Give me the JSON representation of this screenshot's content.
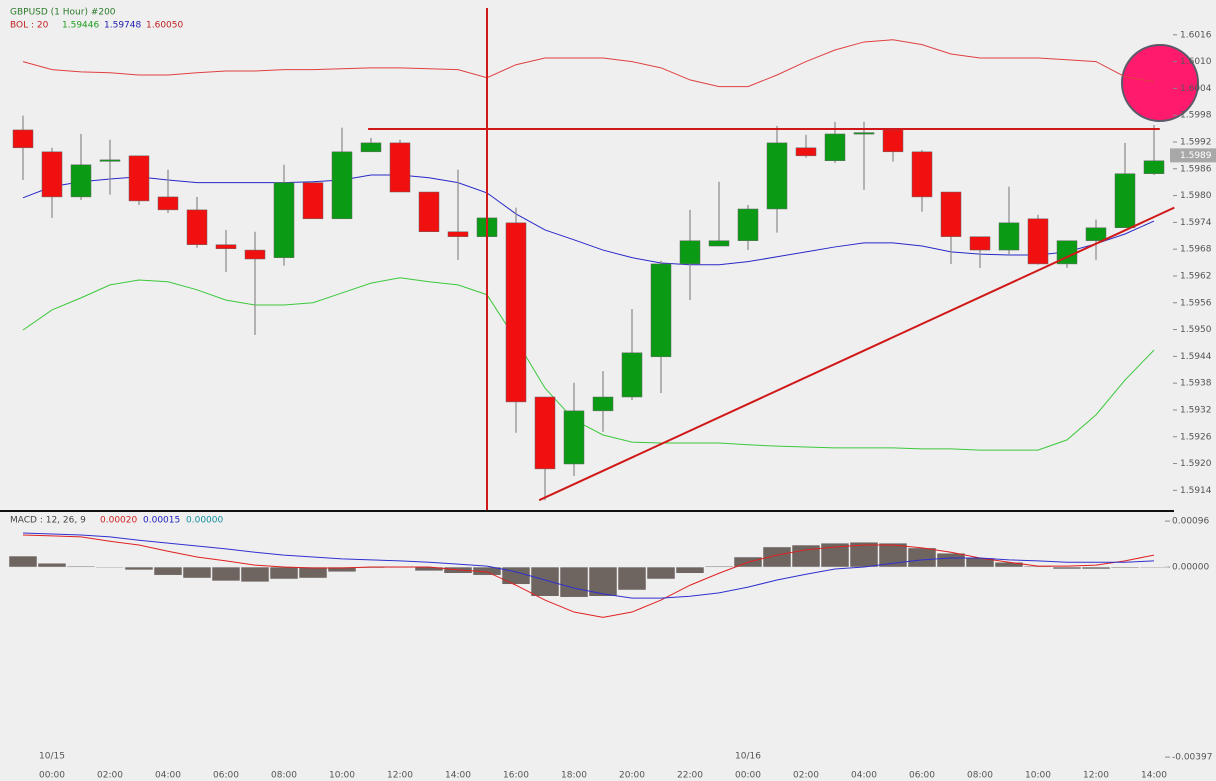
{
  "header": {
    "title": "GBPUSD (1 Hour) #200",
    "bol_label": "BOL : 20",
    "bol_values": [
      "1.59446",
      "1.59748",
      "1.60050"
    ],
    "macd_label": "MACD : 12, 26, 9",
    "macd_values": [
      "0.00020",
      "0.00015",
      "0.00000"
    ]
  },
  "chart_data": [
    {
      "type": "candlestick",
      "categories": [
        null,
        "00:00",
        null,
        "02:00",
        null,
        "04:00",
        null,
        "06:00",
        null,
        "08:00",
        null,
        "10:00",
        null,
        "12:00",
        null,
        "14:00",
        null,
        "16:00",
        null,
        "18:00",
        null,
        "20:00",
        null,
        "22:00",
        null,
        "00:00",
        null,
        "02:00",
        null,
        "04:00",
        null,
        "06:00",
        null,
        "08:00",
        null,
        "10:00",
        null,
        "12:00",
        null,
        "14:00"
      ],
      "date_labels": [
        {
          "index": 1,
          "label": "10/15"
        },
        {
          "index": 25,
          "label": "10/16"
        }
      ],
      "open": [
        1.59947,
        1.59898,
        1.59797,
        1.5988,
        1.59889,
        1.59797,
        1.59768,
        1.5969,
        1.59678,
        1.59661,
        1.59829,
        1.59748,
        1.59898,
        1.59918,
        1.59808,
        1.59719,
        1.59708,
        1.59739,
        1.59349,
        1.59199,
        1.59318,
        1.59349,
        1.59439,
        1.59647,
        1.59687,
        1.59699,
        1.5977,
        1.59907,
        1.59878,
        1.59941,
        1.59947,
        1.59898,
        1.59808,
        1.59708,
        1.59678,
        1.59748,
        1.59647,
        1.59699,
        1.59728,
        1.59849
      ],
      "high": [
        1.59979,
        1.59907,
        1.59938,
        1.59925,
        1.59889,
        1.59858,
        1.59797,
        1.59723,
        1.59719,
        1.59869,
        1.59829,
        1.59952,
        1.59929,
        1.59925,
        1.59808,
        1.59858,
        1.59835,
        1.59773,
        1.59349,
        1.59381,
        1.59407,
        1.59546,
        1.59654,
        1.59768,
        1.59831,
        1.59779,
        1.59956,
        1.59936,
        1.59965,
        1.59965,
        1.59947,
        1.59902,
        1.59808,
        1.59708,
        1.5982,
        1.59757,
        1.59699,
        1.59746,
        1.59918,
        1.59958
      ],
      "low": [
        1.59835,
        1.5975,
        1.5979,
        1.59802,
        1.59779,
        1.59761,
        1.59683,
        1.59629,
        1.59488,
        1.59643,
        1.59748,
        1.59748,
        1.59898,
        1.59808,
        1.59719,
        1.59656,
        1.59701,
        1.59269,
        1.59118,
        1.59172,
        1.59271,
        1.59342,
        1.59358,
        1.59566,
        1.59687,
        1.59678,
        1.59717,
        1.59885,
        1.59873,
        1.59813,
        1.59876,
        1.59764,
        1.59647,
        1.59638,
        1.59667,
        1.59645,
        1.59638,
        1.59656,
        1.59728,
        1.59846
      ],
      "close": [
        1.59907,
        1.59797,
        1.59869,
        1.5988,
        1.59788,
        1.59768,
        1.5969,
        1.59681,
        1.59658,
        1.59829,
        1.59748,
        1.59898,
        1.59918,
        1.59808,
        1.59719,
        1.59708,
        1.5975,
        1.59338,
        1.59188,
        1.59318,
        1.59349,
        1.59448,
        1.59647,
        1.59699,
        1.59699,
        1.5977,
        1.59918,
        1.59889,
        1.59938,
        1.59941,
        1.59898,
        1.59797,
        1.59708,
        1.59678,
        1.59739,
        1.59647,
        1.59699,
        1.59728,
        1.59849,
        1.59878
      ],
      "up_color": "#0a9a14",
      "down_color": "#f01010",
      "series": [
        {
          "color": "#e04040",
          "values": [
            1.601,
            1.60082,
            1.60077,
            1.60075,
            1.6007,
            1.6007,
            1.60075,
            1.60079,
            1.60079,
            1.60082,
            1.60082,
            1.60084,
            1.60086,
            1.60086,
            1.60084,
            1.60082,
            1.60064,
            1.60093,
            1.60108,
            1.60108,
            1.60108,
            1.601,
            1.60086,
            1.60059,
            1.60044,
            1.60044,
            1.6007,
            1.601,
            1.60126,
            1.60144,
            1.60149,
            1.60138,
            1.60117,
            1.60108,
            1.60108,
            1.60108,
            1.60104,
            1.601,
            1.60066,
            1.60055
          ]
        },
        {
          "color": "#2828c8",
          "values": [
            1.59795,
            1.5982,
            1.59831,
            1.59837,
            1.59842,
            1.59835,
            1.59829,
            1.59829,
            1.59829,
            1.59829,
            1.59831,
            1.59835,
            1.59846,
            1.59846,
            1.5984,
            1.59829,
            1.59806,
            1.59759,
            1.59723,
            1.59701,
            1.59678,
            1.59661,
            1.59649,
            1.59645,
            1.59645,
            1.59652,
            1.59663,
            1.59674,
            1.59685,
            1.59694,
            1.59694,
            1.59687,
            1.59674,
            1.59669,
            1.59667,
            1.59667,
            1.59674,
            1.59692,
            1.59714,
            1.59743
          ]
        },
        {
          "color": "#3cc83c",
          "values": [
            1.59499,
            1.59544,
            1.59571,
            1.596,
            1.59611,
            1.59607,
            1.59589,
            1.59566,
            1.59555,
            1.59555,
            1.5956,
            1.59582,
            1.59604,
            1.59616,
            1.59607,
            1.596,
            1.59578,
            1.59477,
            1.59369,
            1.59298,
            1.59264,
            1.59248,
            1.59246,
            1.59246,
            1.59246,
            1.59242,
            1.59239,
            1.59237,
            1.59235,
            1.59235,
            1.59235,
            1.59233,
            1.59233,
            1.5923,
            1.5923,
            1.5923,
            1.59253,
            1.59309,
            1.59387,
            1.59454
          ]
        }
      ],
      "ylim": [
        1.59096,
        1.6022
      ],
      "yticks": [
        1.6016,
        {
          "value": 1.601,
          "label": "1.6010"
        },
        1.6004,
        1.5998,
        1.5992,
        1.5986,
        {
          "value": 1.598,
          "label": "1.5980"
        },
        1.5974,
        1.5968,
        1.5962,
        1.5956,
        {
          "value": 1.595,
          "label": "1.5950"
        },
        1.5944,
        1.5938,
        1.5932,
        1.5926,
        {
          "value": 1.592,
          "label": "1.5920"
        },
        1.5914
      ],
      "last_price": 1.5989,
      "drawings": [
        {
          "x": [
            11.9,
            39.2
          ],
          "y": [
            1.59949,
            1.59949
          ],
          "color": "#d01818"
        },
        {
          "x": [
            16,
            16
          ],
          "y": [
            1.6022,
            1.59096
          ],
          "color": "#d01818"
        },
        {
          "x": [
            17.8,
            39.7
          ],
          "y": [
            1.59118,
            1.59773
          ],
          "color": "#d01818"
        }
      ]
    },
    {
      "type": "macd",
      "histogram": [
        0.00023,
        8e-05,
        2e-05,
        0,
        -6e-05,
        -0.00017,
        -0.00023,
        -0.00029,
        -0.00031,
        -0.00025,
        -0.00023,
        -0.0001,
        -2e-05,
        0,
        -8e-05,
        -0.00013,
        -0.00017,
        -0.00036,
        -0.00061,
        -0.00063,
        -0.00061,
        -0.00048,
        -0.00025,
        -0.00013,
        2e-05,
        0.00021,
        0.00042,
        0.00046,
        0.0005,
        0.00052,
        0.0005,
        0.0004,
        0.00029,
        0.00019,
        0.0001,
        2e-05,
        -4e-05,
        -4e-05,
        -2e-05,
        0
      ],
      "histogram_color": "#6e6561",
      "series": [
        {
          "color": "#e02020",
          "values": [
            0.00067,
            0.00065,
            0.00063,
            0.00054,
            0.00046,
            0.00033,
            0.00021,
            0.00013,
            4e-05,
            0,
            -2e-05,
            -2e-05,
            0,
            0,
            0,
            -6e-05,
            -0.0001,
            -0.00038,
            -0.00069,
            -0.00094,
            -0.00105,
            -0.00094,
            -0.00069,
            -0.00038,
            -0.00013,
            0.0001,
            0.00025,
            0.00036,
            0.00042,
            0.00046,
            0.00046,
            0.0004,
            0.00031,
            0.00019,
            0.0001,
            2e-05,
            2e-05,
            4e-05,
            0.00013,
            0.00025
          ]
        },
        {
          "color": "#3030d0",
          "values": [
            0.00071,
            0.00069,
            0.00067,
            0.00063,
            0.00056,
            0.0005,
            0.00044,
            0.00038,
            0.00031,
            0.00025,
            0.00021,
            0.00017,
            0.00015,
            0.00013,
            0.0001,
            6e-05,
            2e-05,
            -0.0001,
            -0.00027,
            -0.00044,
            -0.00056,
            -0.00065,
            -0.00065,
            -0.00061,
            -0.00054,
            -0.00042,
            -0.00027,
            -0.00015,
            -4e-05,
            0,
            8e-05,
            0.00015,
            0.00019,
            0.00019,
            0.00015,
            0.00013,
            0.0001,
            0.0001,
            0.0001,
            0.00013
          ]
        }
      ],
      "ylim": [
        -0.00424,
        0.00115
      ],
      "yticks": [
        {
          "value": 0.00096,
          "label": "0.00096"
        },
        {
          "value": 0,
          "label": "0.00000"
        },
        {
          "value": -0.00397,
          "label": "-0.00397"
        }
      ]
    }
  ]
}
